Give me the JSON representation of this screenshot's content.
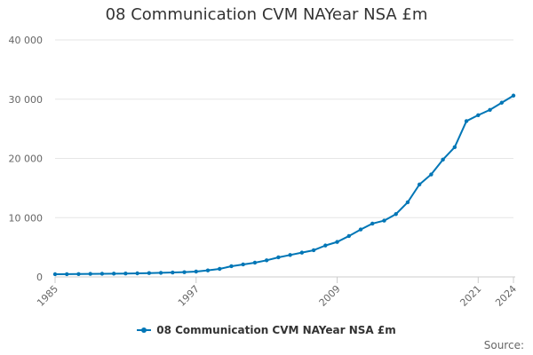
{
  "chart_data": {
    "type": "line",
    "title": "08 Communication CVM NAYear NSA £m",
    "xlabel": "",
    "ylabel": "",
    "x": [
      1985,
      1986,
      1987,
      1988,
      1989,
      1990,
      1991,
      1992,
      1993,
      1994,
      1995,
      1996,
      1997,
      1998,
      1999,
      2000,
      2001,
      2002,
      2003,
      2004,
      2005,
      2006,
      2007,
      2008,
      2009,
      2010,
      2011,
      2012,
      2013,
      2014,
      2015,
      2016,
      2017,
      2018,
      2019,
      2020,
      2021,
      2022,
      2023,
      2024
    ],
    "x_tick_labels": [
      "1985",
      "1997",
      "2009",
      "2021",
      "2024"
    ],
    "xlim": [
      1985,
      2024
    ],
    "ylim": [
      0,
      40000
    ],
    "y_ticks": [
      0,
      10000,
      20000,
      30000,
      40000
    ],
    "y_tick_labels": [
      "0",
      "10 000",
      "20 000",
      "30 000",
      "40 000"
    ],
    "grid": "horizontal",
    "legend_position": "bottom",
    "series": [
      {
        "name": "08 Communication CVM NAYear NSA £m",
        "color": "#0076b6",
        "values": [
          450,
          460,
          480,
          510,
          530,
          550,
          570,
          600,
          640,
          690,
          740,
          800,
          900,
          1100,
          1350,
          1800,
          2100,
          2400,
          2800,
          3300,
          3700,
          4100,
          4500,
          5300,
          5900,
          6900,
          8000,
          9000,
          9500,
          10600,
          12600,
          15600,
          17300,
          19800,
          21900,
          26300,
          27300,
          28200,
          29400,
          30600
        ]
      }
    ]
  },
  "footer": {
    "source_label": "Source:"
  }
}
